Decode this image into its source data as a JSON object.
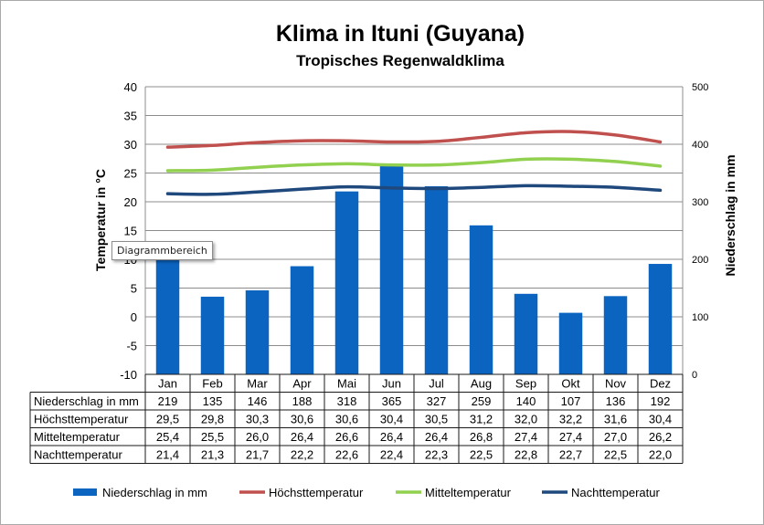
{
  "chart_data": {
    "type": "bar+line",
    "title": "Klima in Ituni (Guyana)",
    "subtitle": "Tropisches Regenwaldklima",
    "categories": [
      "Jan",
      "Feb",
      "Mar",
      "Apr",
      "Mai",
      "Jun",
      "Jul",
      "Aug",
      "Sep",
      "Okt",
      "Nov",
      "Dez"
    ],
    "y_left": {
      "label": "Temperatur in °C",
      "range": [
        -10,
        40
      ],
      "ticks": [
        "40",
        "35",
        "30",
        "25",
        "20",
        "15",
        "10",
        "5",
        "0",
        "-5",
        "-10"
      ]
    },
    "y_right": {
      "label": "Niederschlag in mm",
      "range": [
        0,
        500
      ],
      "ticks": [
        "500",
        "400",
        "300",
        "200",
        "100",
        "0"
      ]
    },
    "grid": true,
    "legend_position": "bottom",
    "series": [
      {
        "name": "Niederschlag in mm",
        "type": "bar",
        "axis": "right",
        "color": "#0b64c0",
        "values": [
          219,
          135,
          146,
          188,
          318,
          365,
          327,
          259,
          140,
          107,
          136,
          192
        ],
        "labels": [
          "219",
          "135",
          "146",
          "188",
          "318",
          "365",
          "327",
          "259",
          "140",
          "107",
          "136",
          "192"
        ]
      },
      {
        "name": "Höchsttemperatur",
        "type": "line",
        "axis": "left",
        "color": "#c0504d",
        "values": [
          29.5,
          29.8,
          30.3,
          30.6,
          30.6,
          30.4,
          30.5,
          31.2,
          32.0,
          32.2,
          31.6,
          30.4
        ],
        "labels": [
          "29,5",
          "29,8",
          "30,3",
          "30,6",
          "30,6",
          "30,4",
          "30,5",
          "31,2",
          "32,0",
          "32,2",
          "31,6",
          "30,4"
        ]
      },
      {
        "name": "Mitteltemperatur",
        "type": "line",
        "axis": "left",
        "color": "#92d050",
        "values": [
          25.4,
          25.5,
          26.0,
          26.4,
          26.6,
          26.4,
          26.4,
          26.8,
          27.4,
          27.4,
          27.0,
          26.2
        ],
        "labels": [
          "25,4",
          "25,5",
          "26,0",
          "26,4",
          "26,6",
          "26,4",
          "26,4",
          "26,8",
          "27,4",
          "27,4",
          "27,0",
          "26,2"
        ]
      },
      {
        "name": "Nachttemperatur",
        "type": "line",
        "axis": "left",
        "color": "#1f497d",
        "values": [
          21.4,
          21.3,
          21.7,
          22.2,
          22.6,
          22.4,
          22.3,
          22.5,
          22.8,
          22.7,
          22.5,
          22.0
        ],
        "labels": [
          "21,4",
          "21,3",
          "21,7",
          "22,2",
          "22,6",
          "22,4",
          "22,3",
          "22,5",
          "22,8",
          "22,7",
          "22,5",
          "22,0"
        ]
      }
    ],
    "tooltip": "Diagrammbereich"
  }
}
